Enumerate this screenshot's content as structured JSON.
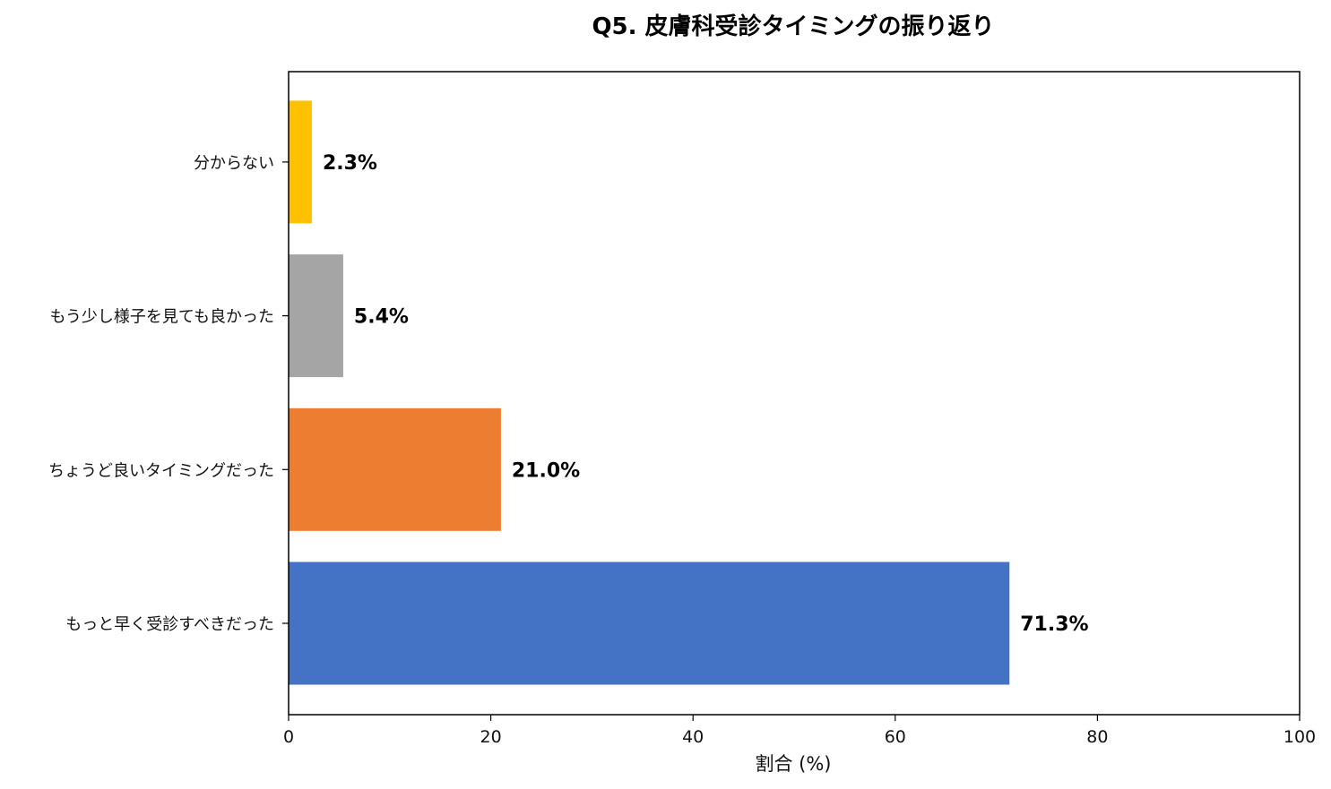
{
  "chart_data": {
    "type": "bar",
    "orientation": "horizontal",
    "title": "Q5. 皮膚科受診タイミングの振り返り",
    "xlabel": "割合 (%)",
    "ylabel": "",
    "xlim": [
      0,
      100
    ],
    "xticks": [
      0,
      20,
      40,
      60,
      80,
      100
    ],
    "categories": [
      "もっと早く受診すべきだった",
      "ちょうど良いタイミングだった",
      "もう少し様子を見ても良かった",
      "分からない"
    ],
    "values": [
      71.3,
      21.0,
      5.4,
      2.3
    ],
    "value_labels": [
      "71.3%",
      "21.0%",
      "5.4%",
      "2.3%"
    ],
    "colors": [
      "#4472C4",
      "#ED7D31",
      "#A5A5A5",
      "#FFC000"
    ],
    "grid": false,
    "legend": "none"
  }
}
